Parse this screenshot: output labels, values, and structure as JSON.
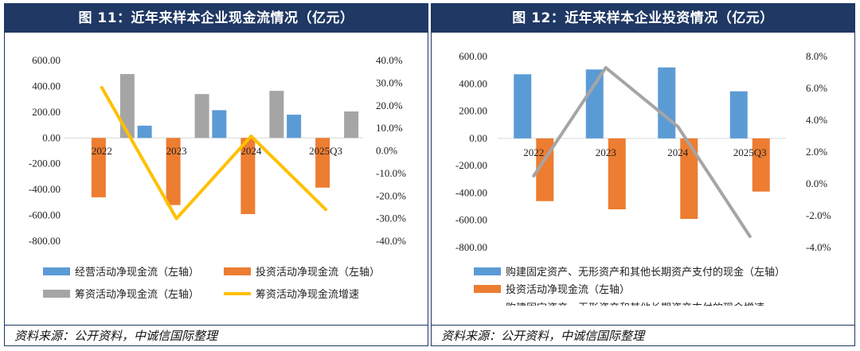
{
  "chart_data": [
    {
      "type": "bar+line",
      "title": "图 11：近年来样本企业现金流情况（亿元）",
      "categories": [
        "2022",
        "2023",
        "2024",
        "2025Q3"
      ],
      "y_left": {
        "min": -800,
        "max": 600,
        "ticks": [
          "600.00",
          "400.00",
          "200.00",
          "0.00",
          "-200.00",
          "-400.00",
          "-600.00",
          "-800.00"
        ]
      },
      "y_right": {
        "min": -40,
        "max": 40,
        "ticks": [
          "40.0%",
          "30.0%",
          "20.0%",
          "10.0%",
          "0.0%",
          "-10.0%",
          "-20.0%",
          "-30.0%",
          "-40.0%"
        ]
      },
      "series": [
        {
          "name": "经营活动净现金流（左轴）",
          "kind": "bar",
          "axis": "left",
          "color": "#5b9bd5",
          "values": [
            0,
            95,
            215,
            180
          ]
        },
        {
          "name": "投资活动净现金流（左轴）",
          "kind": "bar",
          "axis": "left",
          "color": "#ed7d31",
          "values": [
            -460,
            -520,
            -590,
            -385
          ]
        },
        {
          "name": "筹资活动净现金流（左轴）",
          "kind": "bar",
          "axis": "left",
          "color": "#a5a5a5",
          "values": [
            495,
            340,
            365,
            205
          ]
        },
        {
          "name": "筹资活动净现金流增速",
          "kind": "line",
          "axis": "right",
          "color": "#ffc000",
          "values": [
            28,
            -30,
            6.5,
            -26
          ]
        }
      ],
      "source": "资料来源：公开资料，中诚信国际整理"
    },
    {
      "type": "bar+line",
      "title": "图 12：近年来样本企业投资情况（亿元）",
      "categories": [
        "2022",
        "2023",
        "2024",
        "2025Q3"
      ],
      "y_left": {
        "min": -800,
        "max": 600,
        "ticks": [
          "600.00",
          "400.00",
          "200.00",
          "0.00",
          "-200.00",
          "-400.00",
          "-600.00",
          "-800.00"
        ]
      },
      "y_right": {
        "min": -4,
        "max": 8,
        "ticks": [
          "8.0%",
          "6.0%",
          "4.0%",
          "2.0%",
          "0.0%",
          "-2.0%",
          "-4.0%"
        ]
      },
      "series": [
        {
          "name": "购建固定资产、无形资产和其他长期资产支付的现金（左轴）",
          "kind": "bar",
          "axis": "left",
          "color": "#5b9bd5",
          "values": [
            470,
            505,
            520,
            345
          ]
        },
        {
          "name": "投资活动净现金流（左轴）",
          "kind": "bar",
          "axis": "left",
          "color": "#ed7d31",
          "values": [
            -460,
            -520,
            -590,
            -390
          ]
        },
        {
          "name": "购建固定资产、无形资产和其他长期资产支付的现金增速",
          "kind": "line",
          "axis": "right",
          "color": "#a5a5a5",
          "values": [
            0.5,
            7.3,
            3.6,
            -3.3
          ]
        }
      ],
      "source": "资料来源：公开资料，中诚信国际整理"
    }
  ]
}
